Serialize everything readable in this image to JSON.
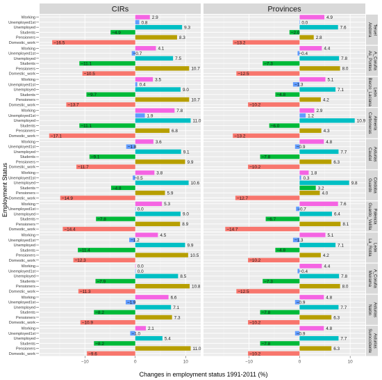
{
  "chart_data": {
    "type": "bar",
    "orientation": "horizontal",
    "facet_columns": [
      "CIRs",
      "Provinces"
    ],
    "categories": [
      "Working",
      "Unemployed1st",
      "Unemployed",
      "Students",
      "Pensioners",
      "Domestic_work"
    ],
    "category_colors": [
      "#F564E3",
      "#619CFF",
      "#00BFC4",
      "#00BA38",
      "#B79F00",
      "#F8766D"
    ],
    "xlabel": "Changes in employment status 1991-2011 (%)",
    "ylabel": "Employment Status",
    "xlim": [
      -19,
      13
    ],
    "xticks": [
      -10,
      0,
      10
    ],
    "grid": true,
    "legend": "none",
    "facets": [
      {
        "label": "Andorra_Teruel",
        "strip_lines": [
          "Andorra",
          "Teruel"
        ],
        "cirs": [
          2.9,
          0.8,
          9.3,
          -4.9,
          8.3,
          -16.5
        ],
        "provinces": [
          4.9,
          0.0,
          7.6,
          -2.0,
          2.8,
          -13.2
        ]
      },
      {
        "label": "As_Pontes_A_Coruña",
        "strip_lines": [
          "As_Pontes",
          "A_Coruña"
        ],
        "cirs": [
          4.1,
          -0.7,
          7.5,
          -11.1,
          10.7,
          -10.5
        ],
        "provinces": [
          4.4,
          -0.4,
          7.8,
          -7.3,
          8.0,
          -12.5
        ]
      },
      {
        "label": "Bierzo_Laciana_León",
        "strip_lines": [
          "Bierzo_Laciana",
          "León"
        ],
        "cirs": [
          3.5,
          0.4,
          9.0,
          -9.7,
          10.7,
          -13.7
        ],
        "provinces": [
          5.1,
          -1.3,
          7.1,
          -4.8,
          4.2,
          -10.2
        ]
      },
      {
        "label": "Carboneras_Almería",
        "strip_lines": [
          "Carboneras",
          "Almería"
        ],
        "cirs": [
          7.8,
          1.9,
          11.0,
          -11.1,
          6.8,
          -17.1
        ],
        "provinces": [
          2.9,
          1.2,
          10.9,
          -6.0,
          4.3,
          -13.2
        ]
      },
      {
        "label": "Caudal_Asturias",
        "strip_lines": [
          "Caudal",
          "Asturias"
        ],
        "cirs": [
          3.6,
          -1.8,
          9.1,
          -9.1,
          9.9,
          -11.7
        ],
        "provinces": [
          4.8,
          -0.9,
          7.7,
          -7.8,
          6.3,
          -10.2
        ]
      },
      {
        "label": "Guardo_Córdoba",
        "strip_lines": [
          "Guardo",
          "Córdoba"
        ],
        "cirs": [
          3.8,
          -0.5,
          10.6,
          -4.8,
          5.9,
          -14.9
        ],
        "provinces": [
          1.8,
          0.3,
          9.8,
          3.2,
          4.0,
          -12.7
        ]
      },
      {
        "label": "Guardo_Velilla_Palencia",
        "strip_lines": [
          "Guardo_Velilla",
          "Palencia"
        ],
        "cirs": [
          5.3,
          0.0,
          9.0,
          -7.8,
          8.9,
          -14.4
        ],
        "provinces": [
          7.6,
          -0.7,
          6.4,
          -6.7,
          8.1,
          -14.7
        ]
      },
      {
        "label": "La_Robla_León",
        "strip_lines": [
          "La_Robla",
          "León"
        ],
        "cirs": [
          4.5,
          -1.2,
          9.9,
          -11.4,
          10.5,
          -12.3
        ],
        "provinces": [
          5.1,
          -1.3,
          7.1,
          -4.8,
          4.2,
          -10.2
        ]
      },
      {
        "label": "Meirama_A_Coruña",
        "strip_lines": [
          "Meirama",
          "A_Coruña"
        ],
        "cirs": [
          0.0,
          0.0,
          8.5,
          -7.9,
          10.8,
          -11.3
        ],
        "provinces": [
          4.4,
          -0.4,
          7.8,
          -7.3,
          8.0,
          -12.5
        ]
      },
      {
        "label": "Nalón_Asturias",
        "strip_lines": [
          "Nalón",
          "Asturias"
        ],
        "cirs": [
          6.6,
          -1.9,
          7.1,
          -8.2,
          7.3,
          -10.9
        ],
        "provinces": [
          4.8,
          -0.9,
          7.7,
          -7.8,
          6.3,
          -10.2
        ]
      },
      {
        "label": "Suroccidente_Asturias",
        "strip_lines": [
          "Suroccidente",
          "Asturias"
        ],
        "cirs": [
          2.1,
          -1.0,
          5.4,
          -8.2,
          11.0,
          -9.6
        ],
        "provinces": [
          4.8,
          -0.9,
          7.7,
          -7.8,
          6.3,
          -10.2
        ]
      }
    ]
  }
}
